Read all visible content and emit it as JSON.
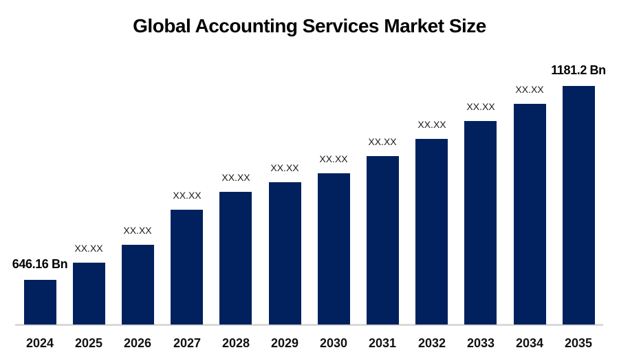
{
  "chart_data": {
    "type": "bar",
    "title": "Global Accounting Services Market Size",
    "categories": [
      "2024",
      "2025",
      "2026",
      "2027",
      "2028",
      "2029",
      "2030",
      "2031",
      "2032",
      "2033",
      "2034",
      "2035"
    ],
    "values": [
      646.16,
      null,
      null,
      null,
      null,
      null,
      null,
      null,
      null,
      null,
      null,
      1181.2
    ],
    "estimated_values": [
      646.16,
      693.6,
      742.8,
      839.5,
      888.7,
      915.3,
      939.9,
      987.3,
      1034.7,
      1083.9,
      1131.3,
      1181.2
    ],
    "bar_labels": [
      "646.16 Bn",
      "XX.XX",
      "XX.XX",
      "XX.XX",
      "XX.XX",
      "XX.XX",
      "XX.XX",
      "XX.XX",
      "XX.XX",
      "XX.XX",
      "XX.XX",
      "1181.2 Bn"
    ],
    "unit": "Bn",
    "xlabel": "",
    "ylabel": "",
    "ylim": [
      523,
      1190
    ],
    "grid": false,
    "legend": null,
    "colors": {
      "bar": "#01215E",
      "axis_line": "#D9D9D9",
      "value_label": "#1a1a1a",
      "tick_label": "#111111",
      "title": "#000000",
      "background": "#FFFFFF"
    }
  }
}
